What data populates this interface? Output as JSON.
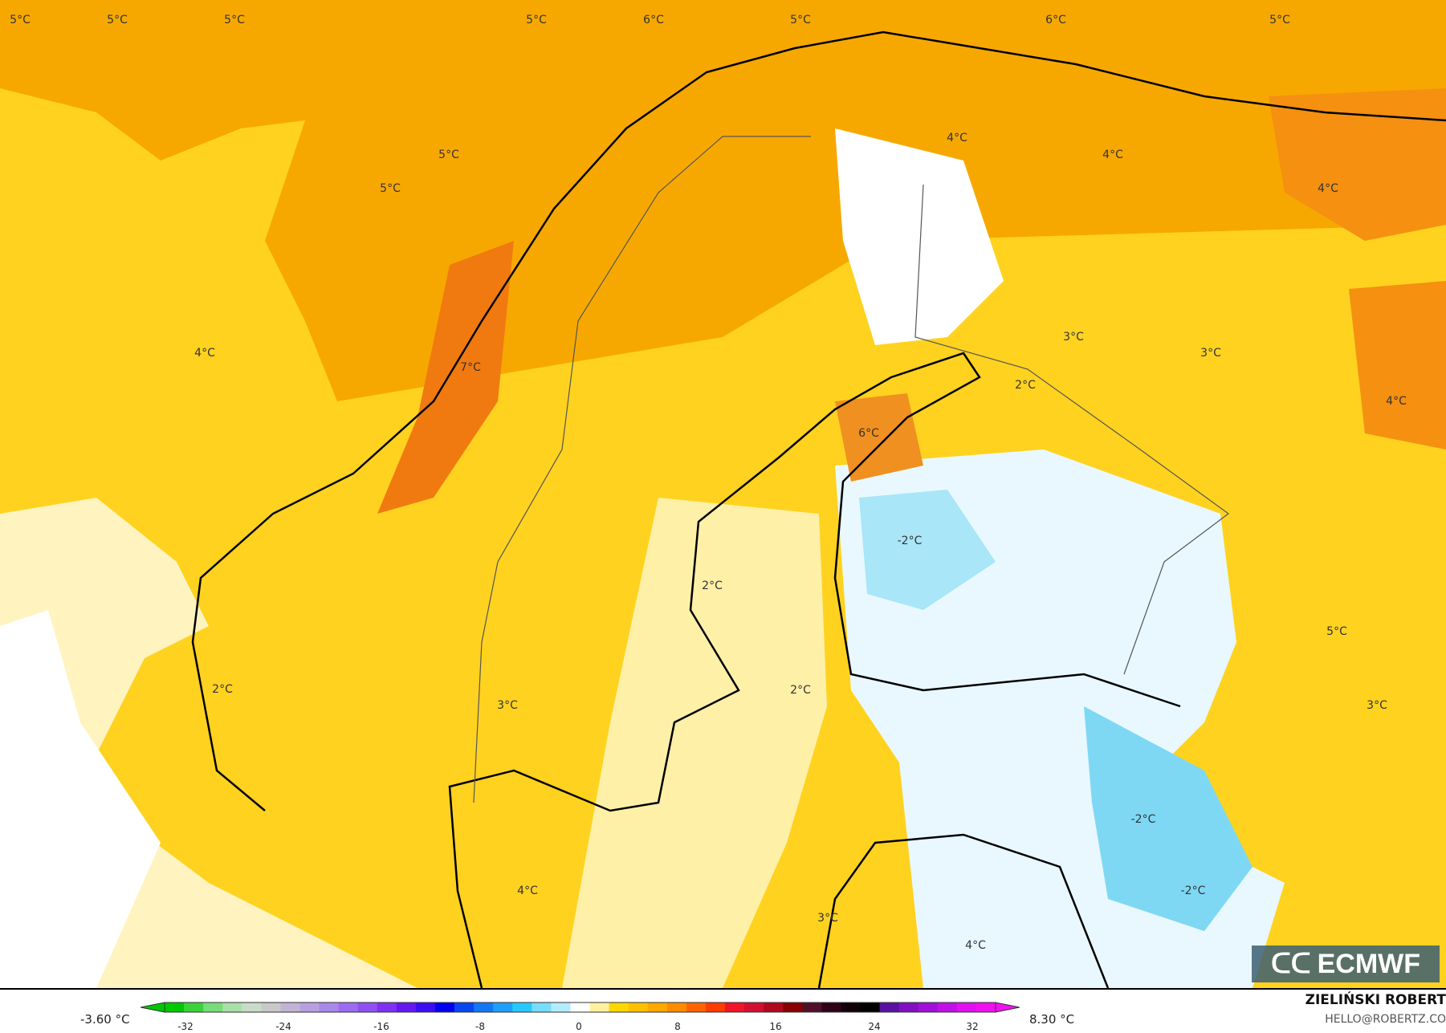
{
  "map": {
    "labels": [
      "5°C",
      "5°C",
      "5°C",
      "5°C",
      "6°C",
      "5°C",
      "6°C",
      "5°C",
      "5°C",
      "5°C",
      "4°C",
      "4°C",
      "4°C",
      "4°C",
      "7°C",
      "3°C",
      "3°C",
      "2°C",
      "4°C",
      "6°C",
      "-2°C",
      "2°C",
      "5°C",
      "2°C",
      "2°C",
      "3°C",
      "3°C",
      "-2°C",
      "4°C",
      "-2°C",
      "3°C",
      "4°C"
    ],
    "colors": {
      "sea_warm": "#f7a800",
      "warm": "#ffd21f",
      "mild": "#ffe680",
      "pale": "#fff4c0",
      "neutral": "#ffffff",
      "cold": "#a8e6f8",
      "colder": "#5fd0f2",
      "hot": "#f07a10"
    }
  },
  "logo": {
    "text": "ECMWF"
  },
  "legend": {
    "min_label": "-3.60 °C",
    "max_label": "8.30 °C",
    "ticks": [
      "-32",
      "-24",
      "-16",
      "-8",
      "0",
      "8",
      "16",
      "24",
      "32"
    ],
    "segments": [
      "#00c800",
      "#3ad23a",
      "#78dc78",
      "#a8e0a8",
      "#c8dcc8",
      "#c8c8c8",
      "#c0b4d4",
      "#b8a0e0",
      "#a888e8",
      "#9c6cf0",
      "#9050f0",
      "#8030f0",
      "#6418f0",
      "#3c0cf0",
      "#0000f0",
      "#0a46f0",
      "#1478f5",
      "#1ea0fa",
      "#28c8ff",
      "#78dcff",
      "#b4ecff",
      "#ffffff",
      "#fff0a0",
      "#ffd700",
      "#ffc000",
      "#ffa800",
      "#ff8c00",
      "#ff6400",
      "#ff3c00",
      "#f01428",
      "#d01030",
      "#b0081c",
      "#880000",
      "#501028",
      "#300018",
      "#100008",
      "#000000",
      "#5a10a0",
      "#8010c0",
      "#a010d8",
      "#c010e8",
      "#e010f0",
      "#f010f0"
    ]
  },
  "credit": {
    "author": "ZIELIŃSKI ROBERT",
    "email": "HELLO@ROBERTZ.CO"
  }
}
